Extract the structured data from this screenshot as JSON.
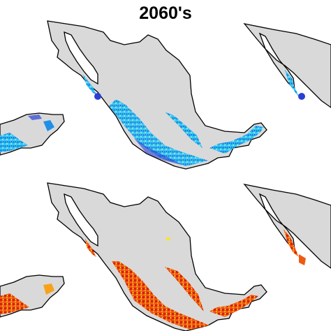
{
  "title": "2060's",
  "panels": [
    {
      "name": "top-center-map",
      "palette": "cool",
      "colors": [
        "#2b3fd6",
        "#1f8fe8",
        "#33c8f0",
        "#7fe6e0",
        "#f7f06a"
      ]
    },
    {
      "name": "bottom-center-map",
      "palette": "warm",
      "colors": [
        "#f9e23a",
        "#f7a21b",
        "#ee5a12",
        "#d4200c",
        "#b81408"
      ]
    }
  ],
  "land_color": "#d9d9d9",
  "outline_color": "#000000"
}
